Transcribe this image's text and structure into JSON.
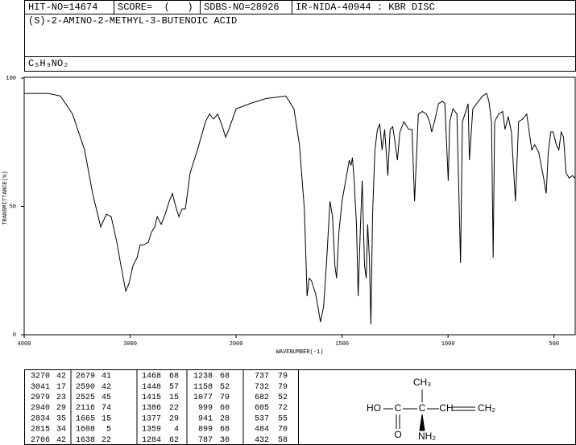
{
  "header": {
    "hit": "HIT-NO=14674",
    "score": "SCORE=  (   )",
    "sdbs": "SDBS-NO=28926",
    "method": "IR-NIDA-40944 : KBR DISC",
    "name": "(S)-2-AMINO-2-METHYL-3-BUTENOIC ACID",
    "formula": "C₅H₉NO₂"
  },
  "chart_data": {
    "type": "line",
    "color": "#000000",
    "xlabel": "WAVENUMBER(-1)",
    "ylabel": "TRANSMITTANCE(%)",
    "xlim": [
      4000,
      400
    ],
    "x_break": 2000,
    "x_break_ratio": 2,
    "xticks": [
      4000,
      3000,
      2000,
      1500,
      1000,
      500
    ],
    "ylim": [
      0,
      100
    ],
    "yticks": [
      0,
      50,
      100
    ],
    "x": [
      4000,
      3924,
      3772,
      3658,
      3544,
      3430,
      3354,
      3278,
      3224,
      3179,
      3125,
      3087,
      3041,
      3011,
      2973,
      2935,
      2905,
      2875,
      2829,
      2798,
      2768,
      2745,
      2707,
      2669,
      2631,
      2601,
      2570,
      2540,
      2510,
      2479,
      2434,
      2365,
      2289,
      2251,
      2213,
      2175,
      2137,
      2099,
      2068,
      2000,
      1936,
      1860,
      1765,
      1727,
      1701,
      1678,
      1665,
      1655,
      1644,
      1625,
      1614,
      1602,
      1587,
      1572,
      1557,
      1545,
      1534,
      1526,
      1515,
      1500,
      1481,
      1466,
      1458,
      1451,
      1443,
      1432,
      1424,
      1413,
      1405,
      1394,
      1386,
      1379,
      1371,
      1364,
      1356,
      1345,
      1333,
      1322,
      1311,
      1299,
      1284,
      1273,
      1261,
      1250,
      1239,
      1227,
      1208,
      1186,
      1170,
      1158,
      1140,
      1121,
      1102,
      1087,
      1077,
      1064,
      1045,
      1026,
      1015,
      999,
      992,
      977,
      958,
      941,
      932,
      920,
      905,
      899,
      883,
      856,
      837,
      818,
      807,
      795,
      787,
      780,
      761,
      742,
      731,
      716,
      701,
      682,
      667,
      648,
      629,
      605,
      591,
      572,
      549,
      537,
      527,
      515,
      504,
      489,
      477,
      466,
      455,
      443,
      428,
      413,
      401
    ],
    "values": [
      94,
      94,
      94,
      93,
      86,
      72,
      55,
      42,
      47,
      46,
      36,
      27,
      17,
      20,
      27,
      30,
      35,
      35,
      36,
      40,
      42,
      46,
      43,
      47,
      52,
      55,
      50,
      46,
      49,
      49,
      63,
      72,
      83,
      86,
      84,
      86,
      82,
      77,
      80,
      88,
      90,
      92,
      93,
      88,
      74,
      49,
      15,
      22,
      21,
      16,
      11,
      5,
      11,
      30,
      52,
      46,
      27,
      22,
      40,
      52,
      61,
      68,
      66,
      69,
      60,
      43,
      15,
      43,
      60,
      27,
      22,
      43,
      29,
      4,
      47,
      72,
      80,
      82,
      72,
      80,
      62,
      80,
      81,
      75,
      68,
      79,
      83,
      80,
      80,
      52,
      86,
      87,
      86,
      83,
      79,
      83,
      90,
      91,
      90,
      60,
      83,
      88,
      86,
      28,
      83,
      86,
      90,
      68,
      88,
      91,
      93,
      94,
      91,
      83,
      30,
      83,
      86,
      87,
      80,
      85,
      79,
      52,
      83,
      84,
      86,
      72,
      74,
      71,
      61,
      55,
      71,
      79,
      79,
      74,
      72,
      79,
      77,
      63,
      61,
      62,
      61
    ]
  },
  "peak_table": {
    "columns": [
      [
        [
          3270,
          42
        ],
        [
          3041,
          17
        ],
        [
          2979,
          23
        ],
        [
          2940,
          29
        ],
        [
          2834,
          35
        ],
        [
          2815,
          34
        ],
        [
          2706,
          42
        ]
      ],
      [
        [
          2679,
          41
        ],
        [
          2590,
          42
        ],
        [
          2525,
          45
        ],
        [
          2116,
          74
        ],
        [
          1665,
          15
        ],
        [
          1608,
          5
        ],
        [
          1638,
          22
        ]
      ],
      [
        [
          1468,
          68
        ],
        [
          1448,
          57
        ],
        [
          1415,
          15
        ],
        [
          1386,
          22
        ],
        [
          1377,
          29
        ],
        [
          1359,
          4
        ],
        [
          1284,
          62
        ]
      ],
      [
        [
          1238,
          68
        ],
        [
          1158,
          52
        ],
        [
          1077,
          79
        ],
        [
          999,
          60
        ],
        [
          941,
          28
        ],
        [
          899,
          68
        ],
        [
          787,
          30
        ]
      ],
      [
        [
          737,
          79
        ],
        [
          732,
          79
        ],
        [
          682,
          52
        ],
        [
          605,
          72
        ],
        [
          537,
          55
        ],
        [
          484,
          70
        ],
        [
          432,
          58
        ]
      ]
    ]
  },
  "structure": {
    "labels": [
      "CH₃",
      "HO",
      "C",
      "C",
      "CH",
      "CH₂",
      "O",
      "NH₂"
    ]
  }
}
